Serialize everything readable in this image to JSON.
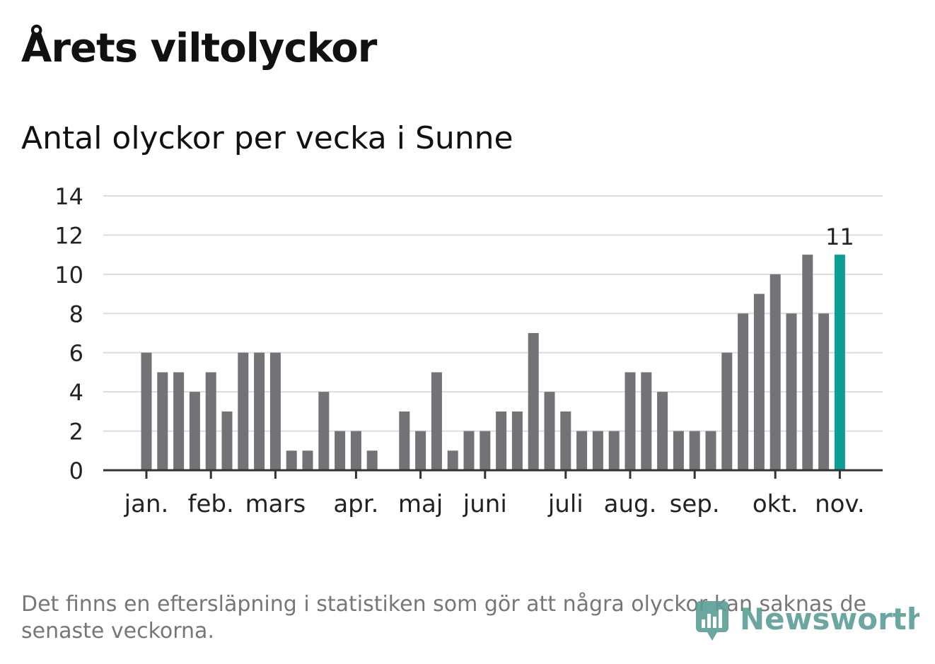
{
  "title": "Årets viltolyckor",
  "subtitle": "Antal olyckor per vecka i Sunne",
  "footnote": "Det finns en eftersläpning i statistiken som gör att några olyckor kan saknas de senaste veckorna.",
  "brand": {
    "name": "Newsworthy",
    "color": "#5a9e96"
  },
  "chart_data": {
    "type": "bar",
    "title": "Årets viltolyckor",
    "subtitle": "Antal olyckor per vecka i Sunne",
    "values": [
      6,
      5,
      5,
      4,
      5,
      3,
      6,
      6,
      6,
      1,
      1,
      4,
      2,
      2,
      1,
      0,
      3,
      2,
      5,
      1,
      2,
      2,
      3,
      3,
      7,
      4,
      3,
      2,
      2,
      2,
      5,
      5,
      4,
      2,
      2,
      2,
      6,
      8,
      9,
      10,
      8,
      11,
      8,
      11
    ],
    "highlight_last_label": "11",
    "ylim": [
      0,
      14
    ],
    "yticks": [
      0,
      2,
      4,
      6,
      8,
      10,
      12,
      14
    ],
    "xticks": [
      {
        "label": "jan.",
        "pos": 0
      },
      {
        "label": "feb.",
        "pos": 4
      },
      {
        "label": "mars",
        "pos": 8
      },
      {
        "label": "apr.",
        "pos": 13
      },
      {
        "label": "maj",
        "pos": 17
      },
      {
        "label": "juni",
        "pos": 21
      },
      {
        "label": "juli",
        "pos": 26
      },
      {
        "label": "aug.",
        "pos": 30
      },
      {
        "label": "sep.",
        "pos": 34
      },
      {
        "label": "okt.",
        "pos": 39
      },
      {
        "label": "nov.",
        "pos": 43
      }
    ],
    "colors": {
      "bar": "#737377",
      "highlight": "#0d9e93",
      "grid": "#dddddd",
      "axis": "#333333"
    },
    "grid": true,
    "legend": "none"
  }
}
